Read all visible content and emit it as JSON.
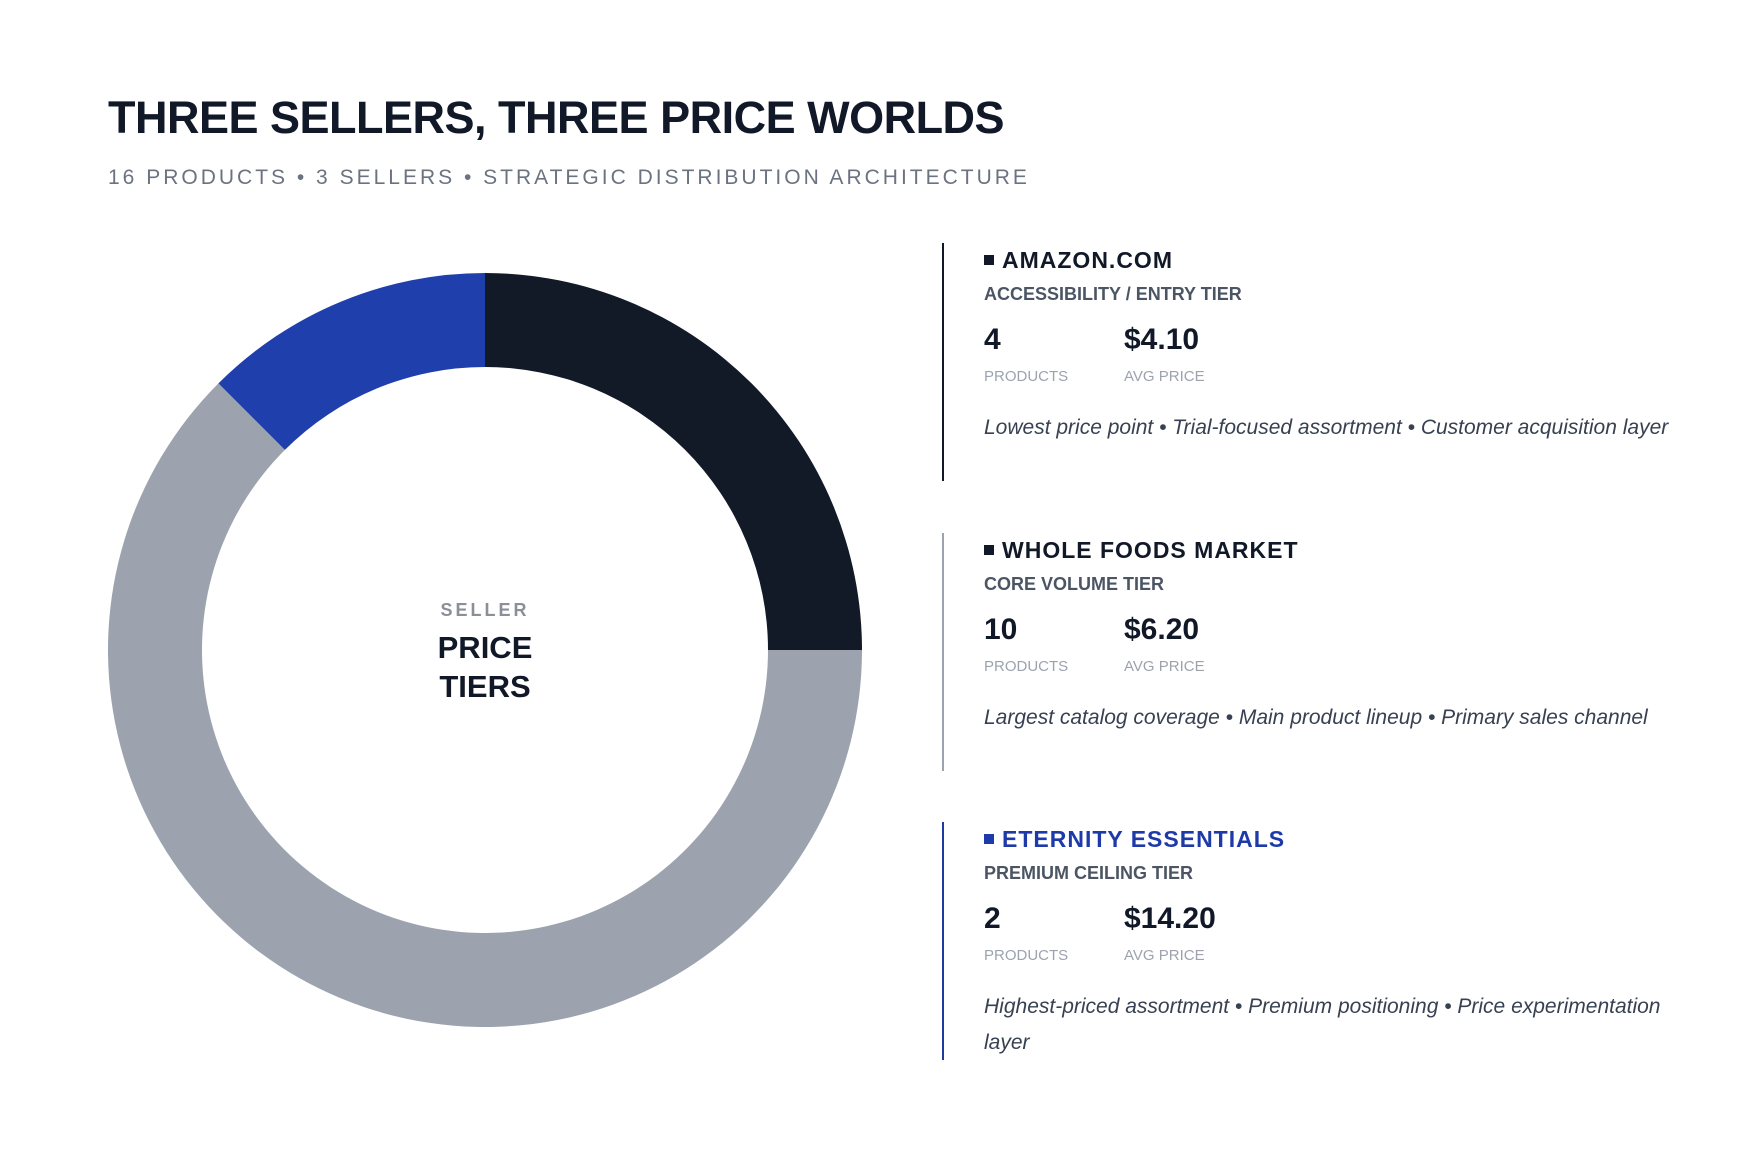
{
  "header": {
    "title": "THREE SELLERS, THREE PRICE WORLDS",
    "subtitle": "16 PRODUCTS • 3 SELLERS • STRATEGIC DISTRIBUTION ARCHITECTURE"
  },
  "center": {
    "small": "SELLER",
    "line1": "PRICE",
    "line2": "TIERS"
  },
  "chart_data": {
    "type": "pie",
    "variant": "donut",
    "categories": [
      "AMAZON.COM",
      "WHOLE FOODS MARKET",
      "ETERNITY ESSENTIALS"
    ],
    "values": [
      4,
      10,
      2
    ],
    "colors": [
      "#131a27",
      "#9ca3ae",
      "#1f3fac"
    ],
    "start": "12 o'clock",
    "direction": "clockwise"
  },
  "sellers": [
    {
      "name": "AMAZON.COM",
      "tier": "ACCESSIBILITY / ENTRY TIER",
      "products": "4",
      "products_label": "PRODUCTS",
      "avg_price": "$4.10",
      "avg_price_label": "AVG PRICE",
      "description": "Lowest price point • Trial-focused assortment • Customer acquisition layer"
    },
    {
      "name": "WHOLE FOODS MARKET",
      "tier": "CORE VOLUME TIER",
      "products": "10",
      "products_label": "PRODUCTS",
      "avg_price": "$6.20",
      "avg_price_label": "AVG PRICE",
      "description": "Largest catalog coverage • Main product lineup • Primary sales channel"
    },
    {
      "name": "ETERNITY ESSENTIALS",
      "tier": "PREMIUM CEILING TIER",
      "products": "2",
      "products_label": "PRODUCTS",
      "avg_price": "$14.20",
      "avg_price_label": "AVG PRICE",
      "description": "Highest-priced assortment • Premium positioning • Price experimentation layer"
    }
  ]
}
